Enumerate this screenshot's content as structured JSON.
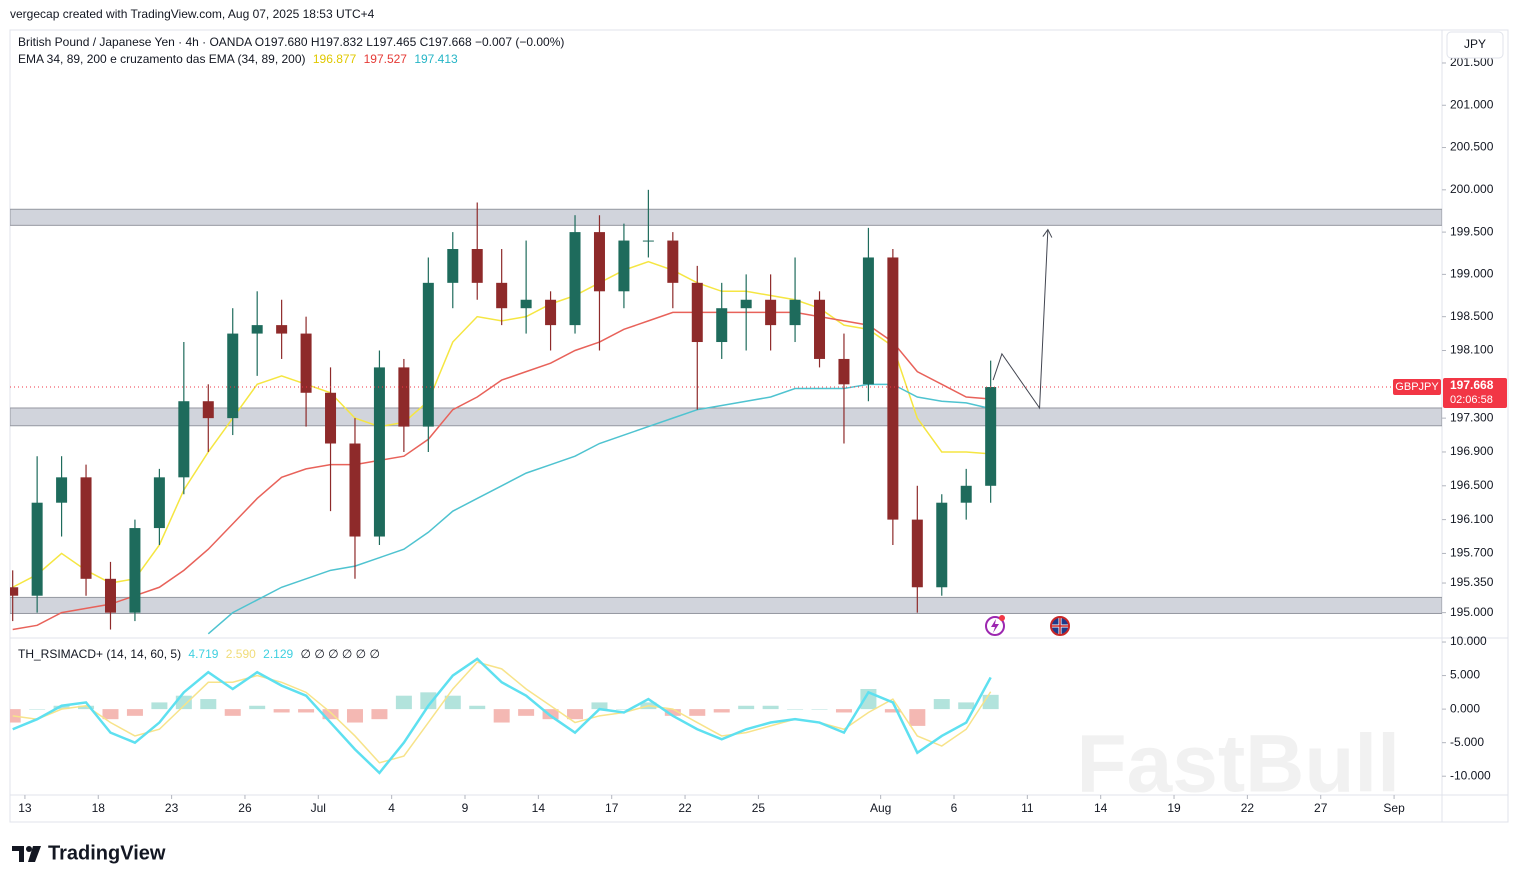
{
  "header": {
    "attribution": "vergecap created with TradingView.com, Aug 07, 2025 18:53 UTC+4",
    "currency": "JPY",
    "symbol_line": "British Pound / Japanese Yen · 4h · OANDA  O197.680  H197.832  L197.465  C197.668  −0.007 (−0.00%)",
    "ema_legend": "EMA 34, 89, 200 e cruzamento das EMA (34, 89, 200)",
    "ema_values": [
      "196.877",
      "197.527",
      "197.413"
    ],
    "indicator_legend": "TH_RSIMACD+ (14, 14, 60, 5)",
    "indicator_values": [
      "4.719",
      "2.590",
      "2.129"
    ],
    "indicator_flags": "∅ ∅ ∅ ∅ ∅ ∅",
    "brand": "TradingView",
    "watermark": "FastBull"
  },
  "chart_data": [
    {
      "type": "candlestick",
      "x": [
        0.5,
        1.5,
        2.5,
        3.5,
        4.5,
        5.5,
        6.5,
        7.5,
        8.5,
        9.5,
        10.5,
        11.5,
        12.5,
        13.5,
        14.5,
        15.5,
        16.5,
        17.5,
        18.5,
        19.5,
        20.5,
        21.5,
        22.5,
        23.5,
        24.5,
        25.5,
        26.5,
        27.5,
        28.5,
        29.5,
        30.5,
        31.5,
        32.5,
        33.5,
        34.5,
        35.5,
        36.5,
        37.5,
        38.5,
        39.5,
        40.5
      ],
      "open": [
        195.3,
        195.2,
        196.3,
        196.6,
        195.4,
        195.0,
        196.0,
        196.6,
        197.5,
        197.3,
        198.3,
        198.4,
        198.3,
        197.6,
        197.0,
        195.9,
        197.9,
        197.2,
        198.9,
        199.3,
        198.9,
        198.6,
        198.7,
        198.4,
        199.5,
        198.8,
        199.4,
        199.4,
        198.9,
        198.2,
        198.6,
        198.7,
        198.4,
        198.7,
        198.0,
        197.7,
        199.2,
        196.1,
        195.3,
        196.3,
        196.5
      ],
      "high": [
        195.5,
        196.85,
        196.85,
        196.75,
        195.6,
        196.1,
        196.7,
        198.2,
        197.7,
        198.6,
        198.8,
        198.7,
        198.5,
        197.9,
        197.3,
        198.1,
        198.0,
        199.2,
        199.5,
        199.85,
        199.3,
        199.4,
        198.8,
        199.7,
        199.7,
        199.6,
        200.0,
        199.5,
        199.1,
        198.9,
        199.0,
        199.0,
        199.2,
        198.8,
        198.3,
        199.55,
        199.3,
        196.5,
        196.4,
        196.7,
        197.98
      ],
      "low": [
        194.9,
        195.0,
        195.9,
        195.2,
        194.8,
        194.9,
        195.8,
        196.4,
        196.9,
        197.1,
        197.8,
        198.0,
        197.2,
        196.2,
        195.4,
        195.8,
        196.9,
        196.9,
        198.6,
        198.7,
        198.4,
        198.3,
        198.1,
        198.3,
        198.1,
        198.6,
        199.2,
        198.6,
        197.4,
        198.0,
        198.1,
        198.1,
        198.2,
        197.9,
        197.0,
        197.5,
        195.8,
        195.0,
        195.2,
        196.1,
        196.3
      ],
      "close": [
        195.2,
        196.3,
        196.6,
        195.4,
        195.0,
        196.0,
        196.6,
        197.5,
        197.3,
        198.3,
        198.4,
        198.3,
        197.6,
        197.0,
        195.9,
        197.9,
        197.2,
        198.9,
        199.3,
        198.9,
        198.6,
        198.7,
        198.4,
        199.5,
        198.8,
        199.4,
        199.4,
        198.9,
        198.2,
        198.6,
        198.7,
        198.4,
        198.7,
        198.0,
        197.7,
        199.2,
        196.1,
        195.3,
        196.3,
        196.5,
        197.668
      ],
      "up_color": "#1e6b5c",
      "down_color": "#8e2a2a",
      "lines": [
        {
          "color": "#f5e642",
          "values": [
            195.3,
            195.45,
            195.7,
            195.5,
            195.35,
            195.4,
            195.8,
            196.45,
            196.9,
            197.3,
            197.7,
            197.8,
            197.7,
            197.6,
            197.3,
            197.2,
            197.25,
            197.5,
            198.2,
            198.5,
            198.45,
            198.5,
            198.65,
            198.75,
            198.9,
            199.05,
            199.15,
            199.05,
            198.9,
            198.8,
            198.8,
            198.75,
            198.7,
            198.6,
            198.4,
            198.35,
            198.15,
            197.3,
            196.9,
            196.9,
            196.877
          ]
        },
        {
          "color": "#e8625a",
          "values": [
            194.8,
            194.85,
            195.0,
            195.05,
            195.1,
            195.2,
            195.3,
            195.5,
            195.75,
            196.05,
            196.35,
            196.6,
            196.7,
            196.75,
            196.75,
            196.8,
            196.85,
            197.05,
            197.4,
            197.55,
            197.75,
            197.85,
            197.95,
            198.1,
            198.2,
            198.35,
            198.45,
            198.55,
            198.55,
            198.55,
            198.55,
            198.55,
            198.55,
            198.5,
            198.45,
            198.4,
            198.2,
            197.85,
            197.7,
            197.55,
            197.527
          ]
        },
        {
          "color": "#4fc3d0",
          "values": [
            null,
            null,
            null,
            null,
            null,
            null,
            null,
            null,
            194.75,
            195.0,
            195.15,
            195.3,
            195.4,
            195.5,
            195.55,
            195.65,
            195.75,
            195.95,
            196.2,
            196.35,
            196.5,
            196.65,
            196.75,
            196.85,
            197.0,
            197.1,
            197.2,
            197.3,
            197.4,
            197.45,
            197.5,
            197.55,
            197.65,
            197.65,
            197.65,
            197.7,
            197.7,
            197.55,
            197.5,
            197.48,
            197.413
          ]
        }
      ],
      "zones": [
        [
          199.58,
          199.77
        ],
        [
          197.21,
          197.42
        ],
        [
          194.99,
          195.18
        ]
      ],
      "zone_color": "#d1d4dc",
      "projection": {
        "x": [
          40.6,
          40.96,
          42.5,
          42.84
        ],
        "y": [
          197.75,
          198.06,
          197.42,
          199.53
        ]
      },
      "last_price": {
        "symbol": "GBPJPY",
        "value": 197.668,
        "countdown": "02:06:58",
        "color": "#f23645"
      },
      "xlim": [
        0.39,
        58.96
      ],
      "xticks": [
        {
          "value": 1,
          "label": "13"
        },
        {
          "value": 4,
          "label": "18"
        },
        {
          "value": 7,
          "label": "23"
        },
        {
          "value": 10,
          "label": "26"
        },
        {
          "value": 13,
          "label": "Jul"
        },
        {
          "value": 16,
          "label": "4"
        },
        {
          "value": 19,
          "label": "9"
        },
        {
          "value": 22,
          "label": "14"
        },
        {
          "value": 25,
          "label": "17"
        },
        {
          "value": 28,
          "label": "22"
        },
        {
          "value": 31,
          "label": "25"
        },
        {
          "value": 36,
          "label": "Aug"
        },
        {
          "value": 39,
          "label": "6"
        },
        {
          "value": 42,
          "label": "11"
        },
        {
          "value": 45,
          "label": "14"
        },
        {
          "value": 48,
          "label": "19"
        },
        {
          "value": 51,
          "label": "22"
        },
        {
          "value": 54,
          "label": "27"
        },
        {
          "value": 57,
          "label": "Sep"
        }
      ],
      "ylim": [
        194.7,
        201.89
      ],
      "yticks": [
        {
          "value": 201.5,
          "label": "201.500"
        },
        {
          "value": 201.0,
          "label": "201.000"
        },
        {
          "value": 200.5,
          "label": "200.500"
        },
        {
          "value": 200.0,
          "label": "200.000"
        },
        {
          "value": 199.5,
          "label": "199.500"
        },
        {
          "value": 199.0,
          "label": "199.000"
        },
        {
          "value": 198.5,
          "label": "198.500"
        },
        {
          "value": 198.1,
          "label": "198.100"
        },
        {
          "value": 197.3,
          "label": "197.300"
        },
        {
          "value": 196.9,
          "label": "196.900"
        },
        {
          "value": 196.5,
          "label": "196.500"
        },
        {
          "value": 196.1,
          "label": "196.100"
        },
        {
          "value": 195.7,
          "label": "195.700"
        },
        {
          "value": 195.35,
          "label": "195.350"
        },
        {
          "value": 195.0,
          "label": "195.000"
        }
      ],
      "grid": false
    },
    {
      "type": "oscillator",
      "x": [
        0.5,
        1.5,
        2.5,
        3.5,
        4.5,
        5.5,
        6.5,
        7.5,
        8.5,
        9.5,
        10.5,
        11.5,
        12.5,
        13.5,
        14.5,
        15.5,
        16.5,
        17.5,
        18.5,
        19.5,
        20.5,
        21.5,
        22.5,
        23.5,
        24.5,
        25.5,
        26.5,
        27.5,
        28.5,
        29.5,
        30.5,
        31.5,
        32.5,
        33.5,
        34.5,
        35.5,
        36.5,
        37.5,
        38.5,
        39.5,
        40.5
      ],
      "histogram": [
        -2,
        0,
        0.5,
        0.5,
        -1.5,
        -1,
        1,
        2,
        1.5,
        -1,
        0.5,
        -0.5,
        -0.5,
        -1.5,
        -2,
        -1.5,
        2,
        2.5,
        2,
        0.5,
        -2,
        -1,
        -1.5,
        -1.5,
        1,
        0,
        1,
        -1,
        -1,
        -0.5,
        0.5,
        0.5,
        0,
        0,
        -0.5,
        3,
        -0.5,
        -2.5,
        1.5,
        1,
        2.129
      ],
      "histogram_colors": {
        "positive": "#b2e3dc",
        "negative": "#f4b8b3"
      },
      "lines": [
        {
          "color": "#f7e38a",
          "values": [
            -1,
            -1.5,
            0,
            0.5,
            -2,
            -4,
            -3,
            0.5,
            4,
            4,
            5,
            4,
            2.5,
            -0.5,
            -4,
            -8,
            -7,
            -2,
            3,
            7,
            6,
            3,
            0.5,
            -2,
            -1,
            -0.5,
            0.5,
            0,
            -2,
            -4,
            -3.5,
            -2.5,
            -1.5,
            -2,
            -3,
            -0.5,
            1.5,
            -4,
            -5.5,
            -3,
            2.59
          ]
        },
        {
          "color": "#5ee0f0",
          "values": [
            -3,
            -1.5,
            0.5,
            1,
            -3.5,
            -5,
            -2,
            2.5,
            5.5,
            3,
            5.5,
            3.5,
            2,
            -2,
            -6,
            -9.5,
            -5,
            0.5,
            5,
            7.5,
            4,
            2,
            -1,
            -3.5,
            0,
            -0.5,
            1.5,
            -1,
            -3,
            -4.5,
            -3,
            -2,
            -1.5,
            -2,
            -3.5,
            2.5,
            1,
            -6.5,
            -4,
            -2,
            4.719
          ]
        }
      ],
      "xlim": [
        0.39,
        58.96
      ],
      "ylim": [
        -12.8,
        10.6
      ],
      "yticks": [
        {
          "value": 10,
          "label": "10.000"
        },
        {
          "value": 5,
          "label": "5.000"
        },
        {
          "value": 0,
          "label": "0.000"
        },
        {
          "value": -5,
          "label": "-5.000"
        },
        {
          "value": -10,
          "label": "-10.000"
        }
      ]
    }
  ]
}
